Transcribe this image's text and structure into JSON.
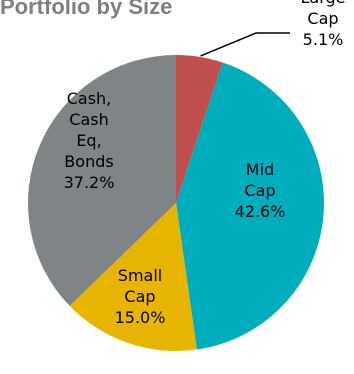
{
  "chart_data": {
    "type": "pie",
    "title": "Portfolio by Size",
    "slices": [
      {
        "label_lines": [
          "Large",
          "Cap",
          "5.1%"
        ],
        "value": 5.1,
        "color": "#c0504d"
      },
      {
        "label_lines": [
          "Mid",
          "Cap",
          "42.6%"
        ],
        "value": 42.6,
        "color": "#00adbd"
      },
      {
        "label_lines": [
          "Small",
          "Cap",
          "15.0%"
        ],
        "value": 15.0,
        "color": "#e7b500"
      },
      {
        "label_lines": [
          "Cash,",
          "Cash",
          "Eq,",
          "Bonds",
          "37.2%"
        ],
        "value": 37.2,
        "color": "#7f8487"
      }
    ]
  }
}
